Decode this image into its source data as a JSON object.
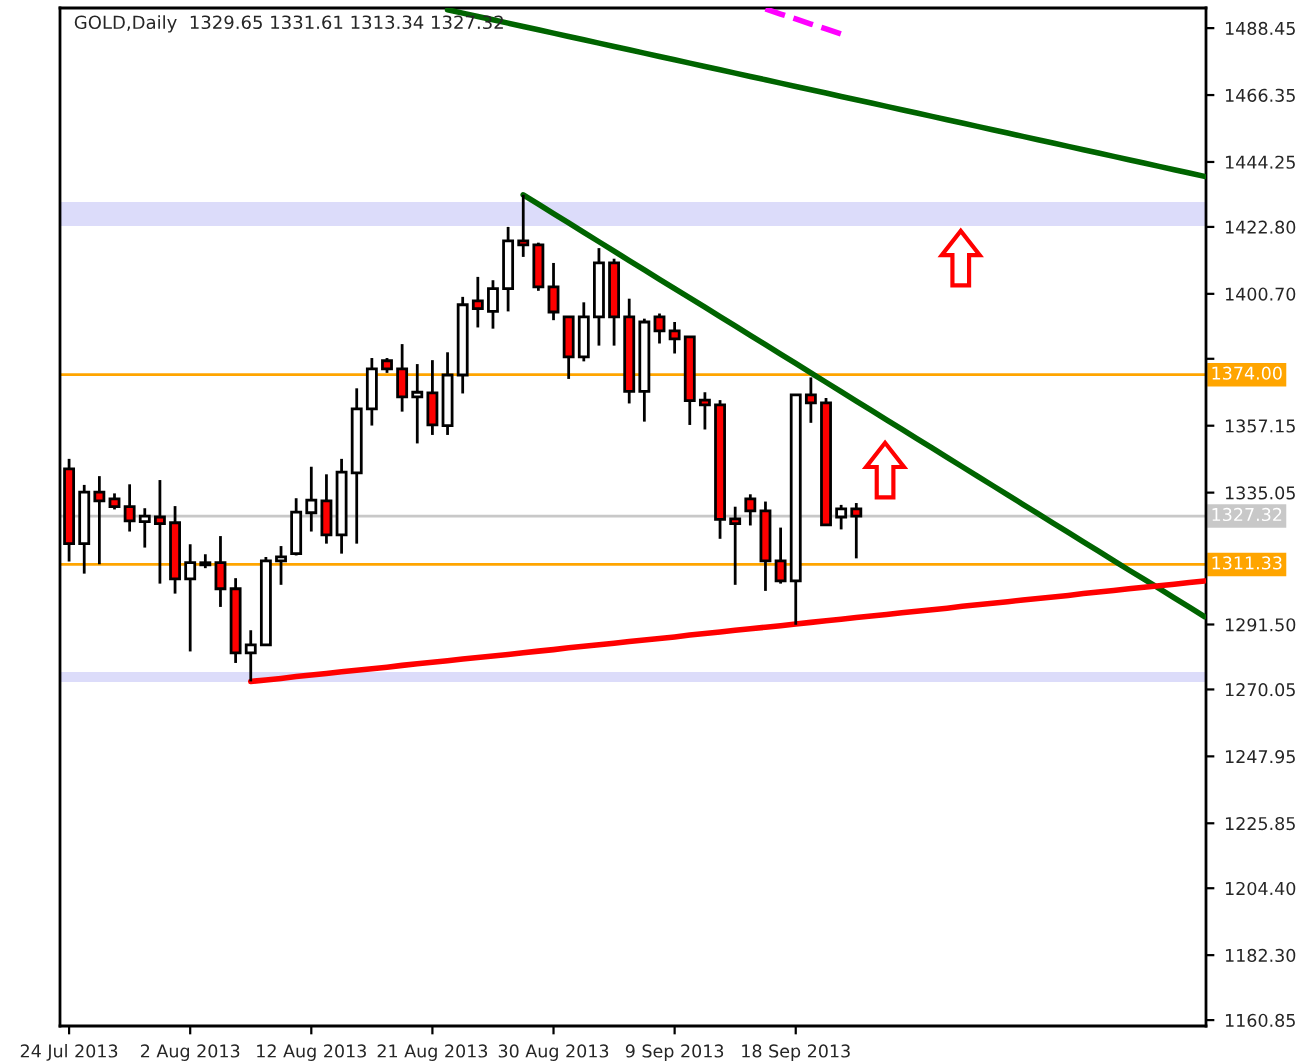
{
  "chart_data": {
    "type": "candlestick",
    "title": "GOLD,Daily  1329.65 1331.61 1313.34 1327.32",
    "categories": [
      "24 Jul 2013",
      null,
      null,
      null,
      null,
      null,
      null,
      null,
      "2 Aug 2013",
      null,
      null,
      null,
      null,
      null,
      null,
      null,
      "12 Aug 2013",
      null,
      null,
      null,
      null,
      null,
      null,
      null,
      "21 Aug 2013",
      null,
      null,
      null,
      null,
      null,
      null,
      null,
      "30 Aug 2013",
      null,
      null,
      null,
      null,
      null,
      null,
      null,
      "9 Sep 2013",
      null,
      null,
      null,
      null,
      null,
      null,
      null,
      "18 Sep 2013",
      null,
      null,
      null,
      null,
      null,
      null,
      null,
      null,
      null,
      null,
      null,
      null,
      null,
      null,
      null,
      null,
      null,
      null,
      null,
      null,
      null,
      null,
      null,
      null,
      null,
      null,
      null
    ],
    "ohlc": [
      [
        1342.9,
        1346.2,
        1312.3,
        1318.2
      ],
      [
        1318.2,
        1337.6,
        1308.3,
        1335.2
      ],
      [
        1335.2,
        1340.5,
        1311.4,
        1332.3
      ],
      [
        1333.0,
        1334.8,
        1329.5,
        1330.4
      ],
      [
        1330.4,
        1337.8,
        1322.2,
        1325.7
      ],
      [
        1325.5,
        1329.9,
        1316.9,
        1327.3
      ],
      [
        1327.0,
        1339.2,
        1305.0,
        1324.8
      ],
      [
        1325.1,
        1330.6,
        1301.7,
        1306.6
      ],
      [
        1306.6,
        1318.0,
        1282.6,
        1311.9
      ],
      [
        1311.2,
        1314.7,
        1310.1,
        1311.9
      ],
      [
        1311.9,
        1320.7,
        1297.3,
        1303.3
      ],
      [
        1303.3,
        1306.8,
        1278.8,
        1282.1
      ],
      [
        1282.1,
        1289.6,
        1272.7,
        1284.8
      ],
      [
        1284.8,
        1313.8,
        1284.8,
        1312.5
      ],
      [
        1312.5,
        1317.4,
        1304.6,
        1313.8
      ],
      [
        1314.9,
        1333.2,
        1314.3,
        1328.6
      ],
      [
        1328.4,
        1343.6,
        1322.2,
        1332.6
      ],
      [
        1332.3,
        1341.1,
        1318.2,
        1321.1
      ],
      [
        1321.1,
        1346.2,
        1314.9,
        1341.8
      ],
      [
        1341.6,
        1369.5,
        1318.2,
        1362.7
      ],
      [
        1362.7,
        1379.5,
        1357.2,
        1375.9
      ],
      [
        1378.6,
        1379.5,
        1374.6,
        1375.9
      ],
      [
        1375.9,
        1384.1,
        1361.8,
        1366.7
      ],
      [
        1366.7,
        1377.5,
        1351.3,
        1368.2
      ],
      [
        1368.0,
        1378.8,
        1354.1,
        1357.4
      ],
      [
        1357.2,
        1381.4,
        1354.1,
        1373.9
      ],
      [
        1373.9,
        1399.7,
        1367.8,
        1397.1
      ],
      [
        1398.4,
        1406.3,
        1389.6,
        1395.8
      ],
      [
        1394.9,
        1405.2,
        1389.2,
        1402.4
      ],
      [
        1402.4,
        1422.8,
        1394.9,
        1418.2
      ],
      [
        1418.2,
        1433.4,
        1412.9,
        1416.9
      ],
      [
        1416.9,
        1417.6,
        1401.7,
        1403.0
      ],
      [
        1403.0,
        1410.9,
        1392.0,
        1394.7
      ],
      [
        1393.1,
        1393.1,
        1372.6,
        1379.9
      ],
      [
        1379.9,
        1397.9,
        1378.4,
        1393.1
      ],
      [
        1393.1,
        1415.8,
        1383.6,
        1410.9
      ],
      [
        1410.9,
        1412.3,
        1383.6,
        1393.1
      ],
      [
        1393.1,
        1399.1,
        1364.5,
        1368.5
      ],
      [
        1368.5,
        1392.5,
        1358.5,
        1391.4
      ],
      [
        1393.1,
        1394.2,
        1384.3,
        1388.5
      ],
      [
        1388.5,
        1391.4,
        1381.0,
        1385.8
      ],
      [
        1386.5,
        1386.5,
        1357.4,
        1365.4
      ],
      [
        1365.6,
        1368.2,
        1355.9,
        1364.0
      ],
      [
        1364.0,
        1365.6,
        1319.8,
        1326.2
      ],
      [
        1326.4,
        1330.4,
        1304.6,
        1324.8
      ],
      [
        1333.0,
        1334.5,
        1324.2,
        1329.0
      ],
      [
        1329.0,
        1332.1,
        1302.6,
        1312.5
      ],
      [
        1312.5,
        1323.5,
        1305.0,
        1305.9
      ],
      [
        1305.9,
        1367.3,
        1291.4,
        1367.3
      ],
      [
        1367.3,
        1373.1,
        1358.1,
        1364.7
      ],
      [
        1364.7,
        1366.3,
        1324.4,
        1324.4
      ],
      [
        1327.0,
        1331.0,
        1322.9,
        1329.7
      ],
      [
        1329.65,
        1331.61,
        1313.34,
        1327.32
      ],
      null,
      null,
      null,
      null,
      null,
      null,
      null,
      null,
      null,
      null,
      null,
      null,
      null,
      null,
      null,
      null,
      null,
      null,
      null,
      null,
      null,
      null,
      null
    ],
    "colors": [
      "#ff0000",
      "#ffffff",
      "#ff0000",
      "#ff0000",
      "#ff0000",
      "#ffffff",
      "#ff0000",
      "#ff0000",
      "#ffffff",
      "#ffffff",
      "#ff0000",
      "#ff0000",
      "#ffffff",
      "#ffffff",
      "#ffffff",
      "#ffffff",
      "#ffffff",
      "#ff0000",
      "#ffffff",
      "#ffffff",
      "#ffffff",
      "#ff0000",
      "#ff0000",
      "#ffffff",
      "#ff0000",
      "#ffffff",
      "#ffffff",
      "#ff0000",
      "#ffffff",
      "#ffffff",
      "#ff0000",
      "#ff0000",
      "#ff0000",
      "#ff0000",
      "#ffffff",
      "#ffffff",
      "#ff0000",
      "#ff0000",
      "#ffffff",
      "#ff0000",
      "#ff0000",
      "#ff0000",
      "#ff0000",
      "#ff0000",
      "#ff0000",
      "#ff0000",
      "#ff0000",
      "#ff0000",
      "#ffffff",
      "#ff0000",
      "#ff0000",
      "#ffffff",
      "#ff0000",
      null,
      null,
      null,
      null,
      null,
      null,
      null,
      null,
      null,
      null,
      null,
      null,
      null,
      null,
      null,
      null,
      null,
      null,
      null,
      null,
      null,
      null,
      null
    ],
    "series": [
      {
        "type": "line",
        "color": "#006400",
        "line_style": "solid",
        "values": [
          null,
          null,
          null,
          null,
          null,
          null,
          null,
          null,
          null,
          null,
          null,
          null,
          null,
          null,
          null,
          null,
          null,
          null,
          null,
          null,
          null,
          null,
          null,
          null,
          null,
          1494.5,
          1493.4,
          1492.3,
          1491.2,
          1490.1,
          1489.0,
          1487.9,
          1486.8,
          1485.7,
          1484.6,
          1483.5,
          1482.4,
          1481.3,
          1480.2,
          1479.1,
          1478.0,
          1476.9,
          1475.8,
          1474.7,
          1473.6,
          1472.5,
          1471.4,
          1470.3,
          1469.2,
          1468.1,
          1467.0,
          1465.9,
          1464.8,
          1463.7,
          1462.6,
          1461.5,
          1460.4,
          1459.3,
          1458.2,
          1457.1,
          1456.0,
          1454.9,
          1453.8,
          1452.7,
          1451.6,
          1450.5,
          1449.4,
          1448.3,
          1447.2,
          1446.1,
          1445.0,
          1443.9,
          1442.8,
          1441.7,
          1440.6,
          1439.5
        ]
      },
      {
        "type": "line",
        "color": "#006400",
        "line_style": "solid",
        "values": [
          null,
          null,
          null,
          null,
          null,
          null,
          null,
          null,
          null,
          null,
          null,
          null,
          null,
          null,
          null,
          null,
          null,
          null,
          null,
          null,
          null,
          null,
          null,
          null,
          null,
          null,
          null,
          null,
          null,
          null,
          1433.4,
          1430.3,
          1427.2,
          1424.1,
          1421.0,
          1417.9,
          1414.8,
          1411.7,
          1408.6,
          1405.5,
          1402.4,
          1399.4,
          1396.3,
          1393.2,
          1390.1,
          1387.0,
          1383.9,
          1380.8,
          1377.7,
          1374.6,
          1371.5,
          1368.4,
          1365.3,
          1362.2,
          1359.1,
          1356.0,
          1352.9,
          1349.8,
          1346.7,
          1343.6,
          1340.5,
          1337.4,
          1334.3,
          1331.2,
          1328.1,
          1325.0,
          1321.9,
          1318.8,
          1315.7,
          1312.6,
          1309.5,
          1306.5,
          1303.4,
          1300.3,
          1297.2,
          1294.1
        ]
      },
      {
        "type": "line",
        "color": "#ff0000",
        "line_style": "solid",
        "values": [
          null,
          null,
          null,
          null,
          null,
          null,
          null,
          null,
          null,
          null,
          null,
          null,
          1272.7,
          1273.2,
          1273.7,
          1274.3,
          1274.8,
          1275.3,
          1275.9,
          1276.4,
          1276.9,
          1277.4,
          1278.0,
          1278.5,
          1279.0,
          1279.5,
          1280.1,
          1280.6,
          1281.1,
          1281.6,
          1282.2,
          1282.7,
          1283.2,
          1283.8,
          1284.3,
          1284.8,
          1285.3,
          1285.9,
          1286.4,
          1286.9,
          1287.4,
          1288.0,
          1288.5,
          1289.0,
          1289.6,
          1290.1,
          1290.6,
          1291.1,
          1291.7,
          1292.2,
          1292.7,
          1293.2,
          1293.8,
          1294.3,
          1294.8,
          1295.4,
          1295.9,
          1296.4,
          1296.9,
          1297.5,
          1298.0,
          1298.5,
          1299.0,
          1299.6,
          1300.1,
          1300.6,
          1301.1,
          1301.7,
          1302.2,
          1302.7,
          1303.3,
          1303.8,
          1304.3,
          1304.8,
          1305.4,
          1305.9
        ]
      },
      {
        "type": "line",
        "color": "#ff00ff",
        "line_style": "dashed",
        "values": [
          null,
          null,
          null,
          null,
          null,
          null,
          null,
          null,
          null,
          null,
          null,
          null,
          null,
          null,
          null,
          null,
          null,
          null,
          null,
          null,
          null,
          null,
          null,
          null,
          null,
          null,
          null,
          null,
          null,
          null,
          null,
          null,
          null,
          null,
          null,
          null,
          null,
          null,
          null,
          null,
          null,
          null,
          null,
          null,
          null,
          null,
          1494.8,
          1493.1,
          1491.5,
          1489.8,
          1488.2,
          1486.5,
          null,
          null,
          null,
          null,
          null,
          null,
          null,
          null,
          null,
          null,
          null,
          null,
          null,
          null,
          null,
          null,
          null,
          null,
          null,
          null,
          null,
          null,
          null,
          null
        ]
      }
    ],
    "ref_lines": [
      {
        "axis": "y",
        "value": 1374.0,
        "label": "1374.00",
        "color": "#ffa500"
      },
      {
        "axis": "y",
        "value": 1311.33,
        "label": "1311.33",
        "color": "#ffa500"
      },
      {
        "axis": "y",
        "value": 1327.32,
        "label": "1327.32",
        "color": "#c8c8c8"
      }
    ],
    "bands": [
      {
        "axis": "y",
        "from": 1423.1,
        "to": 1431.0,
        "color": "#dcdcfa"
      },
      {
        "axis": "y",
        "from": 1272.5,
        "to": 1275.8,
        "color": "#dcdcfa"
      }
    ],
    "ylim": [
      1158.9,
      1495.1
    ],
    "yticks": [
      {
        "value": 1160.85,
        "label": "1160.85"
      },
      {
        "value": 1182.3,
        "label": "1182.30"
      },
      {
        "value": 1204.4,
        "label": "1204.40"
      },
      {
        "value": 1225.85,
        "label": "1225.85"
      },
      {
        "value": 1247.95,
        "label": "1247.95"
      },
      {
        "value": 1270.05,
        "label": "1270.05"
      },
      {
        "value": 1291.5,
        "label": "1291.50"
      },
      {
        "value": 1335.05,
        "label": "1335.05"
      },
      {
        "value": 1357.15,
        "label": "1357.15"
      },
      {
        "value": 1379.25,
        "label": null
      },
      {
        "value": 1400.7,
        "label": "1400.70"
      },
      {
        "value": 1422.8,
        "label": "1422.80"
      },
      {
        "value": 1444.25,
        "label": "1444.25"
      },
      {
        "value": 1466.35,
        "label": "1466.35"
      },
      {
        "value": 1488.45,
        "label": "1488.45"
      }
    ]
  }
}
